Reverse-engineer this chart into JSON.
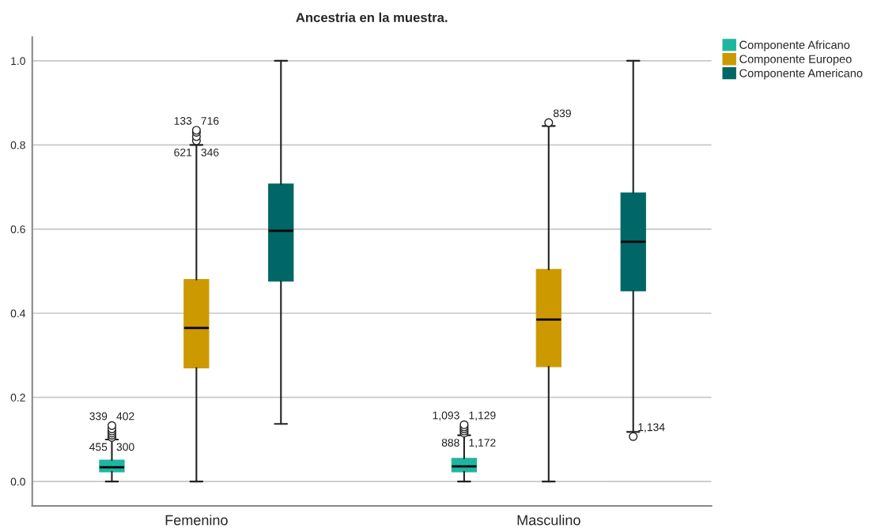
{
  "chart_data": {
    "type": "box",
    "title": "Ancestria en la muestra.",
    "categories": [
      "Femenino",
      "Masculino"
    ],
    "series": [
      {
        "name": "Componente Africano",
        "color": "#1fb5a0",
        "boxes": [
          {
            "low": 0,
            "q1": 0.023,
            "median": 0.034,
            "q3": 0.051,
            "high": 0.1,
            "outliers": [
              0.105,
              0.11,
              0.115,
              0.12,
              0.125,
              0.133
            ]
          },
          {
            "low": 0,
            "q1": 0.023,
            "median": 0.036,
            "q3": 0.055,
            "high": 0.11,
            "outliers": [
              0.115,
              0.12,
              0.125,
              0.13,
              0.135
            ]
          }
        ]
      },
      {
        "name": "Componente Europeo",
        "color": "#cc9900",
        "boxes": [
          {
            "low": 0,
            "q1": 0.27,
            "median": 0.365,
            "q3": 0.48,
            "high": 0.8,
            "outliers": [
              0.81,
              0.82,
              0.83,
              0.835
            ]
          },
          {
            "low": 0,
            "q1": 0.273,
            "median": 0.385,
            "q3": 0.504,
            "high": 0.845,
            "outliers": [
              0.853
            ]
          }
        ]
      },
      {
        "name": "Componente Americano",
        "color": "#006666",
        "boxes": [
          {
            "low": 0.137,
            "q1": 0.476,
            "median": 0.596,
            "q3": 0.707,
            "high": 1.0
          },
          {
            "low": 0.118,
            "q1": 0.453,
            "median": 0.57,
            "q3": 0.686,
            "high": 1.0,
            "outliers": [
              0.107
            ]
          }
        ]
      }
    ],
    "annotations": [
      "339",
      "402",
      "455",
      "300",
      "133",
      "716",
      "621",
      "346",
      "1,093",
      "1,129",
      "888",
      "1,172",
      "839",
      "1,134"
    ],
    "ylim": [
      -0.058,
      1.056
    ],
    "yticks": [
      {
        "value": 0,
        "label": "0.0"
      },
      {
        "value": 0.2,
        "label": "0.2"
      },
      {
        "value": 0.4,
        "label": "0.4"
      },
      {
        "value": 0.6,
        "label": "0.6"
      },
      {
        "value": 0.8,
        "label": "0.8"
      },
      {
        "value": 1.0,
        "label": "1.0"
      }
    ],
    "grid": "y",
    "legend": "top right",
    "marker": "circle"
  }
}
